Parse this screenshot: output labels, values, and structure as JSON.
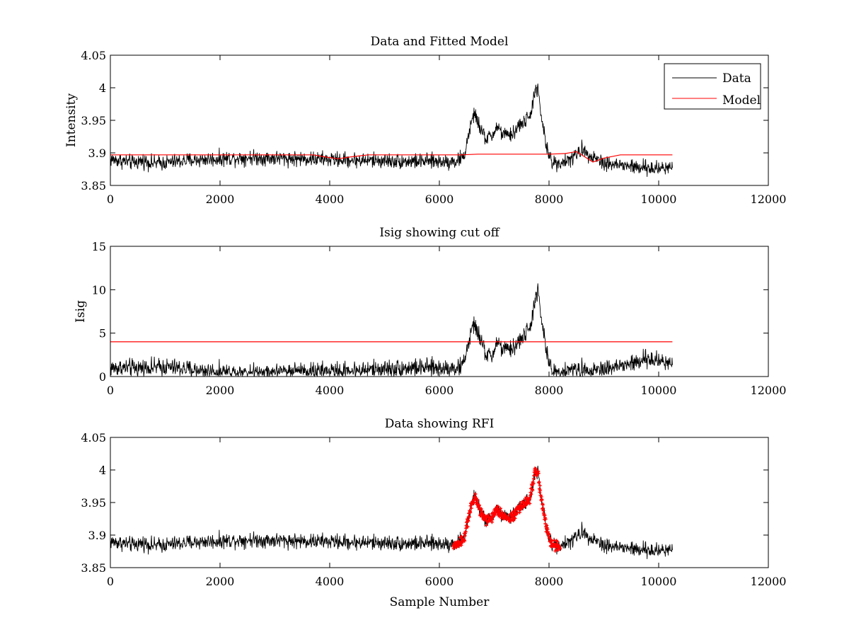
{
  "figure": {
    "background": "#ffffff",
    "data_color": "#000000",
    "model_color": "#ff0000",
    "rfi_color": "#ff0000"
  },
  "chart_data": [
    {
      "type": "line",
      "title": "Data and Fitted Model",
      "xlabel": "",
      "ylabel": "Intensity",
      "xlim": [
        0,
        12000
      ],
      "ylim": [
        3.85,
        4.05
      ],
      "xticks": [
        0,
        2000,
        4000,
        6000,
        8000,
        10000,
        12000
      ],
      "yticks": [
        3.85,
        3.9,
        3.95,
        4.0,
        4.05
      ],
      "xtick_labels": [
        "0",
        "2000",
        "4000",
        "6000",
        "8000",
        "10000",
        "12000"
      ],
      "ytick_labels": [
        "3.85",
        "3.9",
        "3.95",
        "4",
        "4.05"
      ],
      "legend": {
        "position": "top-right",
        "entries": [
          "Data",
          "Model"
        ]
      },
      "series": [
        {
          "name": "Data",
          "color": "#000000",
          "style": "noisy-line",
          "x": [
            0,
            200,
            400,
            600,
            800,
            1000,
            1500,
            2000,
            2500,
            3000,
            3500,
            4000,
            4500,
            5000,
            5500,
            6000,
            6300,
            6450,
            6550,
            6650,
            6750,
            6850,
            6950,
            7050,
            7150,
            7250,
            7350,
            7450,
            7550,
            7650,
            7750,
            7800,
            7850,
            7950,
            8050,
            8200,
            8400,
            8600,
            8800,
            9000,
            9200,
            9400,
            9600,
            9800,
            10000,
            10250
          ],
          "y": [
            3.89,
            3.888,
            3.885,
            3.888,
            3.884,
            3.885,
            3.889,
            3.891,
            3.893,
            3.892,
            3.891,
            3.89,
            3.889,
            3.888,
            3.887,
            3.887,
            3.887,
            3.894,
            3.935,
            3.962,
            3.935,
            3.922,
            3.925,
            3.94,
            3.93,
            3.925,
            3.93,
            3.942,
            3.948,
            3.955,
            3.998,
            3.995,
            3.96,
            3.91,
            3.885,
            3.885,
            3.89,
            3.905,
            3.895,
            3.885,
            3.882,
            3.88,
            3.878,
            3.876,
            3.876,
            3.88
          ],
          "noise_amplitude": 0.009
        },
        {
          "name": "Model",
          "color": "#ff0000",
          "style": "line",
          "x": [
            0,
            3700,
            3900,
            4150,
            4400,
            4700,
            6400,
            6700,
            8000,
            8300,
            8500,
            8650,
            8800,
            9000,
            9300,
            10250
          ],
          "y": [
            3.897,
            3.897,
            3.894,
            3.891,
            3.894,
            3.897,
            3.897,
            3.898,
            3.898,
            3.899,
            3.902,
            3.894,
            3.886,
            3.892,
            3.897,
            3.897
          ]
        }
      ]
    },
    {
      "type": "line",
      "title": "Isig showing cut off",
      "xlabel": "",
      "ylabel": "Isig",
      "xlim": [
        0,
        12000
      ],
      "ylim": [
        0,
        15
      ],
      "xticks": [
        0,
        2000,
        4000,
        6000,
        8000,
        10000,
        12000
      ],
      "yticks": [
        0,
        5,
        10,
        15
      ],
      "xtick_labels": [
        "0",
        "2000",
        "4000",
        "6000",
        "8000",
        "10000",
        "12000"
      ],
      "ytick_labels": [
        "0",
        "5",
        "10",
        "15"
      ],
      "series": [
        {
          "color": "#000000",
          "style": "noisy-line-abs",
          "x": [
            0,
            500,
            1000,
            1500,
            2000,
            2500,
            3000,
            3500,
            4000,
            4500,
            5000,
            5500,
            6000,
            6400,
            6500,
            6600,
            6650,
            6750,
            6850,
            6950,
            7050,
            7150,
            7250,
            7350,
            7450,
            7550,
            7650,
            7750,
            7800,
            7850,
            7950,
            8050,
            8300,
            8600,
            9000,
            9400,
            9800,
            10250
          ],
          "y": [
            1.0,
            1.0,
            1.1,
            0.8,
            0.5,
            0.5,
            0.5,
            0.7,
            0.6,
            0.7,
            0.9,
            1.0,
            1.0,
            1.0,
            3.0,
            5.5,
            6.0,
            4.2,
            2.6,
            2.2,
            4.0,
            3.2,
            3.0,
            3.3,
            4.0,
            4.8,
            5.5,
            9.0,
            9.8,
            7.0,
            3.0,
            0.5,
            0.6,
            0.8,
            0.9,
            1.3,
            2.0,
            1.6
          ],
          "noise_amplitude": 0.8
        },
        {
          "name": "cut off",
          "color": "#ff0000",
          "style": "line",
          "x": [
            0,
            10250
          ],
          "y": [
            4,
            4
          ]
        }
      ]
    },
    {
      "type": "line",
      "title": "Data showing RFI",
      "xlabel": "Sample Number",
      "ylabel": "",
      "xlim": [
        0,
        12000
      ],
      "ylim": [
        3.85,
        4.05
      ],
      "xticks": [
        0,
        2000,
        4000,
        6000,
        8000,
        10000,
        12000
      ],
      "yticks": [
        3.85,
        3.9,
        3.95,
        4.0,
        4.05
      ],
      "xtick_labels": [
        "0",
        "2000",
        "4000",
        "6000",
        "8000",
        "10000",
        "12000"
      ],
      "ytick_labels": [
        "3.85",
        "3.9",
        "3.95",
        "4",
        "4.05"
      ],
      "rfi_range": [
        6250,
        8200
      ],
      "series": [
        {
          "color": "#000000",
          "style": "noisy-line",
          "x": [
            0,
            200,
            400,
            600,
            800,
            1000,
            1500,
            2000,
            2500,
            3000,
            3500,
            4000,
            4500,
            5000,
            5500,
            6000,
            6300,
            6450,
            6550,
            6650,
            6750,
            6850,
            6950,
            7050,
            7150,
            7250,
            7350,
            7450,
            7550,
            7650,
            7750,
            7800,
            7850,
            7950,
            8050,
            8200,
            8400,
            8600,
            8800,
            9000,
            9200,
            9400,
            9600,
            9800,
            10000,
            10250
          ],
          "y": [
            3.89,
            3.888,
            3.885,
            3.888,
            3.884,
            3.885,
            3.889,
            3.891,
            3.893,
            3.892,
            3.891,
            3.89,
            3.889,
            3.888,
            3.887,
            3.887,
            3.887,
            3.894,
            3.935,
            3.962,
            3.935,
            3.922,
            3.925,
            3.94,
            3.93,
            3.925,
            3.93,
            3.942,
            3.948,
            3.955,
            3.998,
            3.995,
            3.96,
            3.91,
            3.885,
            3.885,
            3.89,
            3.905,
            3.895,
            3.885,
            3.882,
            3.88,
            3.878,
            3.876,
            3.876,
            3.88
          ],
          "noise_amplitude": 0.009
        },
        {
          "color": "#ff0000",
          "style": "markers",
          "x": [
            6250,
            6350,
            6450,
            6550,
            6650,
            6750,
            6850,
            6950,
            7050,
            7150,
            7250,
            7350,
            7450,
            7550,
            7650,
            7750,
            7800,
            7850,
            7950,
            8050,
            8200
          ],
          "y": [
            3.882,
            3.887,
            3.894,
            3.935,
            3.962,
            3.935,
            3.922,
            3.925,
            3.94,
            3.93,
            3.925,
            3.93,
            3.942,
            3.948,
            3.955,
            3.998,
            3.995,
            3.96,
            3.91,
            3.885,
            3.882
          ]
        }
      ]
    }
  ]
}
